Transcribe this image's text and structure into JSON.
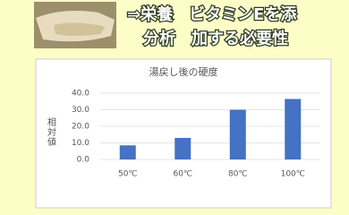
{
  "header": {
    "lines": [
      "⇒栄養　ビタミンEを添",
      "分析　加する必要性"
    ]
  },
  "chart_data": {
    "type": "bar",
    "title": "湯戻し後の硬度",
    "y_label": "相対値",
    "categories": [
      "50℃",
      "60℃",
      "80℃",
      "100℃"
    ],
    "values": [
      8.5,
      13,
      30,
      36.5
    ],
    "color": "#4472c4",
    "ylim": [
      0,
      40
    ],
    "yticks": [
      {
        "value": 0,
        "label": "0.0"
      },
      {
        "value": 10,
        "label": "10.0"
      },
      {
        "value": 20,
        "label": "20.0"
      },
      {
        "value": 30,
        "label": "30.0"
      },
      {
        "value": 40,
        "label": "40.0"
      }
    ],
    "grid": true
  }
}
